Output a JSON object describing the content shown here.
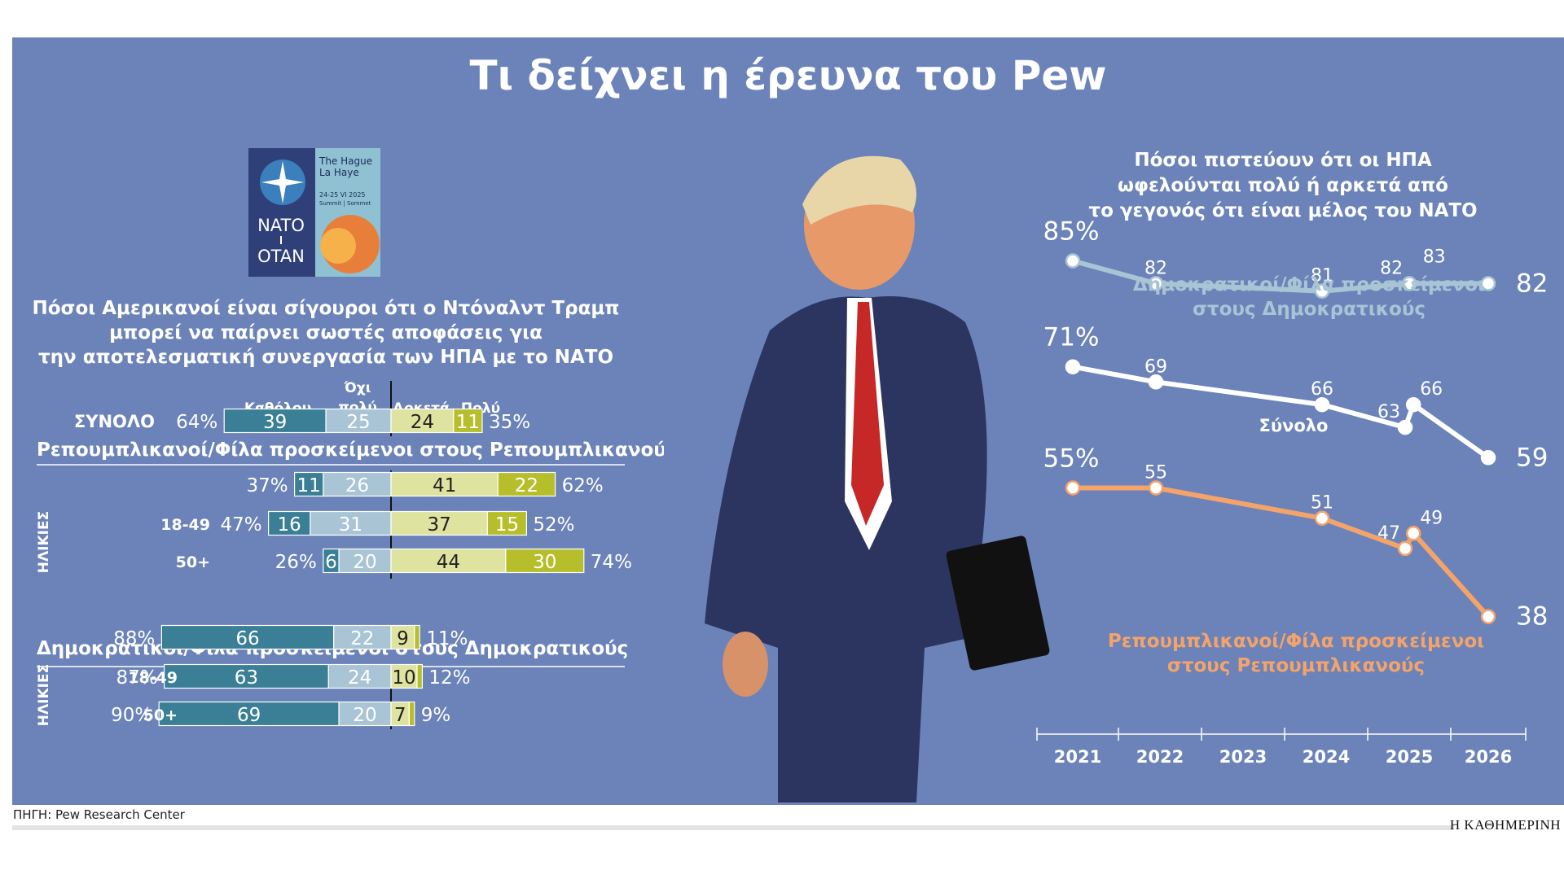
{
  "title": "Τι δείχνει η έρευνα του Pew",
  "logo": {
    "line1": "The Hague",
    "line2": "La Haye",
    "dates": "24-25 VI 2025",
    "sub": "Summit | Sommet",
    "nato": "NATO",
    "otan": "OTAN"
  },
  "source": "ΠΗΓΗ: Pew Research Center",
  "brand": "Η ΚΑΘΗΜΕΡΙΝΗ",
  "colors": {
    "panel": "#6b83b9",
    "kathólou": "#3a7f96",
    "ochi_poly": "#a9c4d4",
    "arketa": "#dfe3a0",
    "poly": "#b6be2c",
    "dem_line": "#a9c4d4",
    "total_line": "#ffffff",
    "rep_line": "#f4a36a"
  },
  "chart_data": [
    {
      "type": "bar",
      "stacked": true,
      "diverging": true,
      "title": "Πόσοι Αμερικανοί είναι σίγουροι ότι ο Ντόναλντ Τραμπ μπορεί να παίρνει σωστές αποφάσεις για την αποτελεσματική συνεργασία των ΗΠΑ με το ΝΑΤΟ",
      "title_lines": [
        "Πόσοι Αμερικανοί είναι σίγουροι ότι ο Ντόναλντ Τραμπ",
        "μπορεί να παίρνει σωστές αποφάσεις για",
        "την αποτελεσματική συνεργασία των ΗΠΑ με το ΝΑΤΟ"
      ],
      "series_names": [
        "Καθόλου",
        "Όχι πολύ",
        "Αρκετά",
        "Πολύ"
      ],
      "header": {
        "katholou": "Καθόλου",
        "ochi_a": "Όχι",
        "ochi_b": "πολύ",
        "arketa": "Αρκετά",
        "poly": "Πολύ"
      },
      "age_label": "ΗΛΙΚΙΕΣ",
      "groups": [
        {
          "label": "",
          "rows": [
            {
              "label": "ΣΥΝΟΛΟ",
              "neg_total": "64%",
              "values": [
                39,
                25,
                24,
                11
              ],
              "pos_total": "35%"
            }
          ]
        },
        {
          "label": "Ρεπουμπλικανοί/Φίλα προσκείμενοι στους Ρεπουμπλικανούς",
          "rows": [
            {
              "label": "",
              "neg_total": "37%",
              "values": [
                11,
                26,
                41,
                22
              ],
              "pos_total": "62%"
            },
            {
              "label": "18-49",
              "neg_total": "47%",
              "values": [
                16,
                31,
                37,
                15
              ],
              "pos_total": "52%"
            },
            {
              "label": "50+",
              "neg_total": "26%",
              "values": [
                6,
                20,
                44,
                30
              ],
              "pos_total": "74%"
            }
          ]
        },
        {
          "label": "Δημοκρατικοί/Φίλα προσκείμενοι στους Δημοκρατικούς",
          "rows": [
            {
              "label": "",
              "neg_total": "88%",
              "values": [
                66,
                22,
                9,
                2
              ],
              "pos_total": "11%"
            },
            {
              "label": "18-49",
              "neg_total": "87%",
              "values": [
                63,
                24,
                10,
                2
              ],
              "pos_total": "12%"
            },
            {
              "label": "50+",
              "neg_total": "90%",
              "values": [
                69,
                20,
                7,
                2
              ],
              "pos_total": "9%"
            }
          ]
        }
      ],
      "hidden_value_labels": {
        "Δημοκρατικοί-Πολύ": true
      }
    },
    {
      "type": "line",
      "title": "Πόσοι πιστεύουν ότι οι ΗΠΑ ωφελούνται πολύ ή αρκετά από το γεγονός ότι είναι μέλος του ΝΑΤΟ",
      "title_lines": [
        "Πόσοι πιστεύουν ότι οι ΗΠΑ",
        "ωφελούνται πολύ ή αρκετά από",
        "το γεγονός ότι είναι μέλος του ΝΑΤΟ"
      ],
      "x_ticks": [
        "2021",
        "2022",
        "2023",
        "2024",
        "2025",
        "2026"
      ],
      "x_range": [
        2021,
        2026
      ],
      "ylim": [
        30,
        90
      ],
      "series": [
        {
          "name": "Δημοκρατικοί/Φίλα προσκείμενοι στους Δημοκρατικούς",
          "name_lines": [
            "Δημοκρατικοί/Φίλα προσκείμενοι",
            "στους Δημοκρατικούς"
          ],
          "x": [
            2021.0,
            2022.0,
            2024.0,
            2025.05,
            2026.0
          ],
          "values": [
            85,
            82,
            81,
            82,
            82
          ],
          "labels": [
            "85%",
            "82",
            "81",
            "82",
            "82"
          ],
          "extra_label": "83"
        },
        {
          "name": "Σύνολο",
          "name_lines": [
            "Σύνολο"
          ],
          "x": [
            2021.0,
            2022.0,
            2024.0,
            2025.0,
            2025.1,
            2026.0
          ],
          "values": [
            71,
            69,
            66,
            63,
            66,
            59
          ],
          "labels": [
            "71%",
            "69",
            "66",
            "63",
            "66",
            "59"
          ]
        },
        {
          "name": "Ρεπουμπλικανοί/Φίλα προσκείμενοι στους Ρεπουμπλικανούς",
          "name_lines": [
            "Ρεπουμπλικανοί/Φίλα προσκείμενοι",
            "στους Ρεπουμπλικανούς"
          ],
          "x": [
            2021.0,
            2022.0,
            2024.0,
            2025.0,
            2025.1,
            2026.0
          ],
          "values": [
            55,
            55,
            51,
            47,
            49,
            38
          ],
          "labels": [
            "55%",
            "55",
            "51",
            "47",
            "49",
            "38"
          ]
        }
      ]
    }
  ]
}
